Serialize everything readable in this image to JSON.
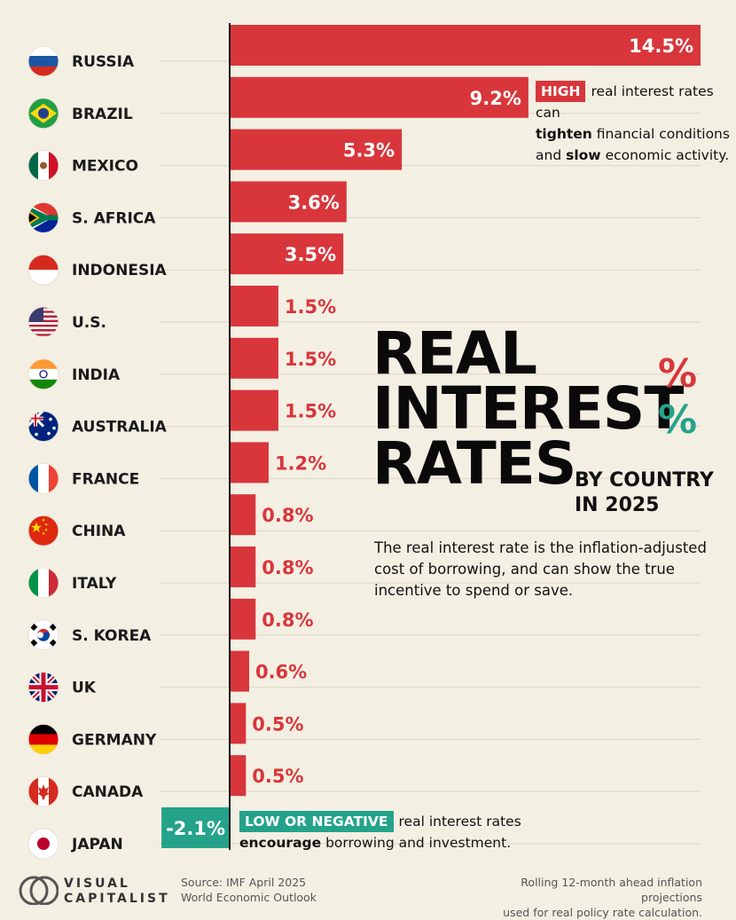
{
  "chart_data": {
    "type": "bar",
    "orientation": "horizontal",
    "title": [
      "REAL",
      "INTEREST",
      "RATES"
    ],
    "subtitle": [
      "BY COUNTRY",
      "IN 2025"
    ],
    "categories": [
      "RUSSIA",
      "BRAZIL",
      "MEXICO",
      "S. AFRICA",
      "INDONESIA",
      "U.S.",
      "INDIA",
      "AUSTRALIA",
      "FRANCE",
      "CHINA",
      "ITALY",
      "S. KOREA",
      "UK",
      "GERMANY",
      "CANADA",
      "JAPAN"
    ],
    "values": [
      14.5,
      9.2,
      5.3,
      3.6,
      3.5,
      1.5,
      1.5,
      1.5,
      1.2,
      0.8,
      0.8,
      0.8,
      0.6,
      0.5,
      0.5,
      -2.1
    ],
    "value_labels": [
      "14.5%",
      "9.2%",
      "5.3%",
      "3.6%",
      "3.5%",
      "1.5%",
      "1.5%",
      "1.5%",
      "1.2%",
      "0.8%",
      "0.8%",
      "0.8%",
      "0.6%",
      "0.5%",
      "0.5%",
      "-2.1%"
    ],
    "flag_icons": [
      "russia-flag",
      "brazil-flag",
      "mexico-flag",
      "south-africa-flag",
      "indonesia-flag",
      "us-flag",
      "india-flag",
      "australia-flag",
      "france-flag",
      "china-flag",
      "italy-flag",
      "south-korea-flag",
      "uk-flag",
      "germany-flag",
      "canada-flag",
      "japan-flag"
    ],
    "positive_color": "#d8363b",
    "negative_color": "#24a38a",
    "xlim": [
      -2.1,
      14.5
    ],
    "grid": true
  },
  "percent_glyphs": {
    "red": "%",
    "green": "%"
  },
  "description": "The real interest rate is the inflation-adjusted cost of borrowing, and can show the true incentive to spend or save.",
  "callout_high": {
    "tag": "HIGH",
    "line1": "real interest rates can",
    "emph1": "tighten",
    "line2": "financial conditions",
    "pre3": "and",
    "emph2": "slow",
    "line3": "economic activity."
  },
  "callout_low": {
    "tag": "LOW OR NEGATIVE",
    "line1": "real interest rates",
    "emph1": "encourage",
    "line2": "borrowing and investment."
  },
  "footer": {
    "brand_line1": "VISUAL",
    "brand_line2": "CAPITALIST",
    "source_line1": "Source: IMF April 2025",
    "source_line2": "World Economic Outlook",
    "note_line1": "Rolling 12-month ahead inflation projections",
    "note_line2": "used for real policy rate calculation."
  }
}
